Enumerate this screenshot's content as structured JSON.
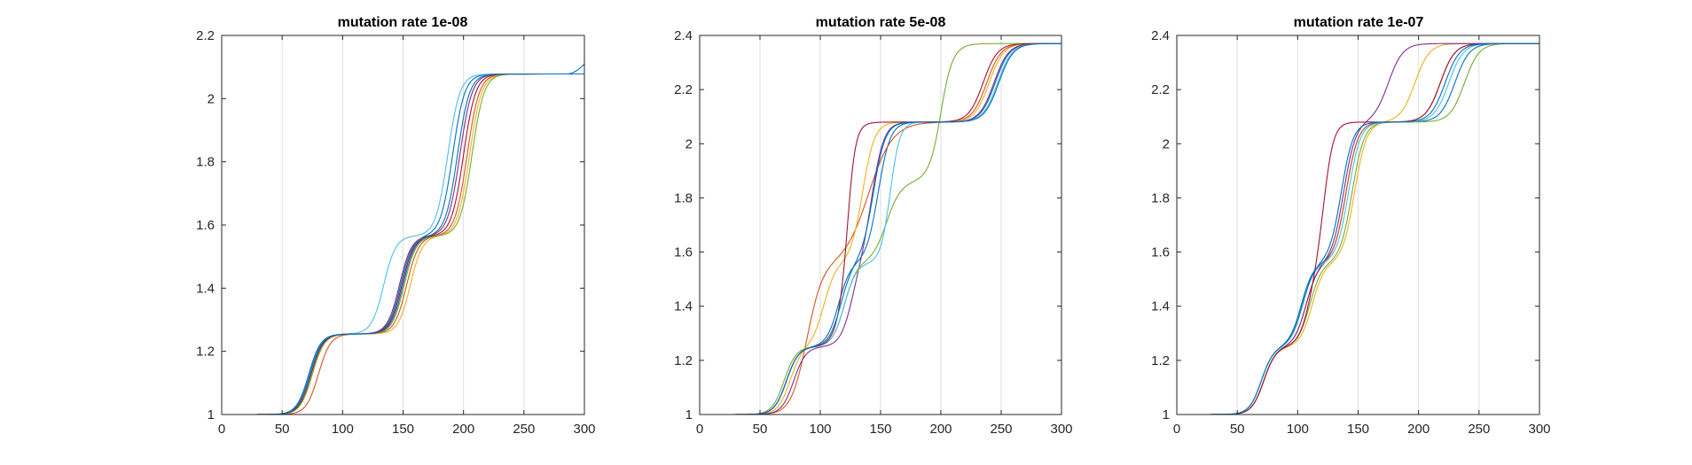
{
  "colors": [
    "#0072BD",
    "#D95319",
    "#EDB120",
    "#7E2F8E",
    "#77AC30",
    "#4DBEEE",
    "#A2142F"
  ],
  "chart_data": [
    {
      "type": "line",
      "title": "mutation rate 1e-08",
      "xlim": [
        0,
        300
      ],
      "ylim": [
        1,
        2.2
      ],
      "xticks": [
        0,
        50,
        100,
        150,
        200,
        250,
        300
      ],
      "yticks": [
        1,
        1.2,
        1.4,
        1.6,
        1.8,
        2,
        2.2
      ],
      "xtick_labels": [
        "0",
        "50",
        "100",
        "150",
        "200",
        "250",
        "300"
      ],
      "ytick_labels": [
        "1",
        "1.2",
        "1.4",
        "1.6",
        "1.8",
        "2",
        "2.2"
      ],
      "grid": "vertical",
      "series_model": "sum of logistic steps: y = 1 + Σ h·sigmoid((x − c)/w)",
      "series": [
        {
          "steps": [
            {
              "c": 72,
              "h": 0.255,
              "w": 5
            },
            {
              "c": 148,
              "h": 0.31,
              "w": 5
            },
            {
              "c": 191,
              "h": 0.513,
              "w": 5
            }
          ],
          "tail": {
            "start": 285,
            "end_value": 2.11
          }
        },
        {
          "steps": [
            {
              "c": 80,
              "h": 0.255,
              "w": 5
            },
            {
              "c": 153,
              "h": 0.31,
              "w": 5
            },
            {
              "c": 203,
              "h": 0.513,
              "w": 5
            }
          ]
        },
        {
          "steps": [
            {
              "c": 74,
              "h": 0.255,
              "w": 5
            },
            {
              "c": 156,
              "h": 0.31,
              "w": 5
            },
            {
              "c": 205,
              "h": 0.513,
              "w": 5
            }
          ]
        },
        {
          "steps": [
            {
              "c": 73,
              "h": 0.255,
              "w": 5
            },
            {
              "c": 147,
              "h": 0.31,
              "w": 5
            },
            {
              "c": 197,
              "h": 0.513,
              "w": 5
            }
          ]
        },
        {
          "steps": [
            {
              "c": 75,
              "h": 0.255,
              "w": 5
            },
            {
              "c": 151,
              "h": 0.31,
              "w": 5
            },
            {
              "c": 207,
              "h": 0.513,
              "w": 5
            }
          ]
        },
        {
          "steps": [
            {
              "c": 73,
              "h": 0.255,
              "w": 5
            },
            {
              "c": 134,
              "h": 0.31,
              "w": 5
            },
            {
              "c": 187,
              "h": 0.513,
              "w": 5
            }
          ]
        },
        {
          "steps": [
            {
              "c": 74,
              "h": 0.255,
              "w": 5
            },
            {
              "c": 149,
              "h": 0.31,
              "w": 5
            },
            {
              "c": 200,
              "h": 0.513,
              "w": 5
            }
          ]
        },
        {
          "steps": [
            {
              "c": 73,
              "h": 0.255,
              "w": 5
            },
            {
              "c": 150,
              "h": 0.31,
              "w": 5
            },
            {
              "c": 195,
              "h": 0.513,
              "w": 5
            }
          ]
        }
      ]
    },
    {
      "type": "line",
      "title": "mutation rate 5e-08",
      "xlim": [
        0,
        300
      ],
      "ylim": [
        1,
        2.4
      ],
      "xticks": [
        0,
        50,
        100,
        150,
        200,
        250,
        300
      ],
      "yticks": [
        1,
        1.2,
        1.4,
        1.6,
        1.8,
        2,
        2.2,
        2.4
      ],
      "xtick_labels": [
        "0",
        "50",
        "100",
        "150",
        "200",
        "250",
        "300"
      ],
      "ytick_labels": [
        "1",
        "1.2",
        "1.4",
        "1.6",
        "1.8",
        "2",
        "2.2",
        "2.4"
      ],
      "grid": "vertical",
      "series_model": "sum of logistic steps: y = 1 + Σ h·sigmoid((x − c)/w)",
      "series": [
        {
          "steps": [
            {
              "c": 72,
              "h": 0.25,
              "w": 5
            },
            {
              "c": 115,
              "h": 0.31,
              "w": 5
            },
            {
              "c": 148,
              "h": 0.52,
              "w": 5
            },
            {
              "c": 245,
              "h": 0.29,
              "w": 6
            }
          ]
        },
        {
          "steps": [
            {
              "c": 85,
              "h": 0.25,
              "w": 6
            },
            {
              "c": 92,
              "h": 0.3,
              "w": 6
            },
            {
              "c": 140,
              "h": 0.53,
              "w": 10
            },
            {
              "c": 238,
              "h": 0.29,
              "w": 6
            }
          ]
        },
        {
          "steps": [
            {
              "c": 75,
              "h": 0.25,
              "w": 5
            },
            {
              "c": 103,
              "h": 0.31,
              "w": 5
            },
            {
              "c": 135,
              "h": 0.52,
              "w": 5
            },
            {
              "c": 240,
              "h": 0.29,
              "w": 6
            }
          ]
        },
        {
          "steps": [
            {
              "c": 78,
              "h": 0.25,
              "w": 5
            },
            {
              "c": 126,
              "h": 0.31,
              "w": 5
            },
            {
              "c": 143,
              "h": 0.52,
              "w": 5
            },
            {
              "c": 244,
              "h": 0.29,
              "w": 6
            }
          ]
        },
        {
          "steps": [
            {
              "c": 70,
              "h": 0.25,
              "w": 5
            },
            {
              "c": 120,
              "h": 0.31,
              "w": 5
            },
            {
              "c": 155,
              "h": 0.3,
              "w": 6
            },
            {
              "c": 200,
              "h": 0.22,
              "w": 4
            },
            {
              "c": 200,
              "h": 0.29,
              "w": 6
            }
          ]
        },
        {
          "steps": [
            {
              "c": 72,
              "h": 0.25,
              "w": 5
            },
            {
              "c": 120,
              "h": 0.31,
              "w": 5
            },
            {
              "c": 158,
              "h": 0.52,
              "w": 4
            },
            {
              "c": 247,
              "h": 0.29,
              "w": 6
            }
          ]
        },
        {
          "steps": [
            {
              "c": 72,
              "h": 0.25,
              "w": 5
            },
            {
              "c": 119,
              "h": 0.31,
              "w": 5
            },
            {
              "c": 123,
              "h": 0.52,
              "w": 3
            },
            {
              "c": 235,
              "h": 0.29,
              "w": 6
            }
          ]
        },
        {
          "steps": [
            {
              "c": 72,
              "h": 0.25,
              "w": 5
            },
            {
              "c": 117,
              "h": 0.31,
              "w": 5
            },
            {
              "c": 144,
              "h": 0.52,
              "w": 5
            },
            {
              "c": 248,
              "h": 0.29,
              "w": 6
            }
          ]
        }
      ]
    },
    {
      "type": "line",
      "title": "mutation rate 1e-07",
      "xlim": [
        0,
        300
      ],
      "ylim": [
        1,
        2.4
      ],
      "xticks": [
        0,
        50,
        100,
        150,
        200,
        250,
        300
      ],
      "yticks": [
        1,
        1.2,
        1.4,
        1.6,
        1.8,
        2,
        2.2,
        2.4
      ],
      "xtick_labels": [
        "0",
        "50",
        "100",
        "150",
        "200",
        "250",
        "300"
      ],
      "ytick_labels": [
        "1",
        "1.2",
        "1.4",
        "1.6",
        "1.8",
        "2",
        "2.2",
        "2.4"
      ],
      "grid": "vertical",
      "series_model": "sum of logistic steps: y = 1 + Σ h·sigmoid((x − c)/w)",
      "series": [
        {
          "steps": [
            {
              "c": 70,
              "h": 0.25,
              "w": 5
            },
            {
              "c": 103,
              "h": 0.31,
              "w": 5
            },
            {
              "c": 140,
              "h": 0.52,
              "w": 5
            },
            {
              "c": 230,
              "h": 0.29,
              "w": 6
            }
          ]
        },
        {
          "steps": [
            {
              "c": 72,
              "h": 0.25,
              "w": 5
            },
            {
              "c": 107,
              "h": 0.31,
              "w": 5
            },
            {
              "c": 140,
              "h": 0.52,
              "w": 5
            },
            {
              "c": 218,
              "h": 0.29,
              "w": 6
            }
          ]
        },
        {
          "steps": [
            {
              "c": 72,
              "h": 0.25,
              "w": 5
            },
            {
              "c": 112,
              "h": 0.31,
              "w": 5
            },
            {
              "c": 147,
              "h": 0.52,
              "w": 5
            },
            {
              "c": 197,
              "h": 0.29,
              "w": 6
            }
          ]
        },
        {
          "steps": [
            {
              "c": 72,
              "h": 0.25,
              "w": 5
            },
            {
              "c": 107,
              "h": 0.31,
              "w": 5
            },
            {
              "c": 138,
              "h": 0.52,
              "w": 5
            },
            {
              "c": 175,
              "h": 0.29,
              "w": 6
            }
          ]
        },
        {
          "steps": [
            {
              "c": 72,
              "h": 0.25,
              "w": 5
            },
            {
              "c": 110,
              "h": 0.31,
              "w": 5
            },
            {
              "c": 145,
              "h": 0.52,
              "w": 5
            },
            {
              "c": 238,
              "h": 0.29,
              "w": 6
            }
          ]
        },
        {
          "steps": [
            {
              "c": 70,
              "h": 0.25,
              "w": 5
            },
            {
              "c": 104,
              "h": 0.31,
              "w": 5
            },
            {
              "c": 142,
              "h": 0.52,
              "w": 5
            },
            {
              "c": 225,
              "h": 0.29,
              "w": 6
            }
          ]
        },
        {
          "steps": [
            {
              "c": 72,
              "h": 0.25,
              "w": 5
            },
            {
              "c": 110,
              "h": 0.31,
              "w": 5
            },
            {
              "c": 122,
              "h": 0.52,
              "w": 4
            },
            {
              "c": 218,
              "h": 0.29,
              "w": 6
            }
          ]
        },
        {
          "steps": [
            {
              "c": 70,
              "h": 0.25,
              "w": 5
            },
            {
              "c": 104,
              "h": 0.31,
              "w": 5
            },
            {
              "c": 136,
              "h": 0.52,
              "w": 5
            },
            {
              "c": 222,
              "h": 0.29,
              "w": 6
            }
          ]
        }
      ]
    }
  ]
}
